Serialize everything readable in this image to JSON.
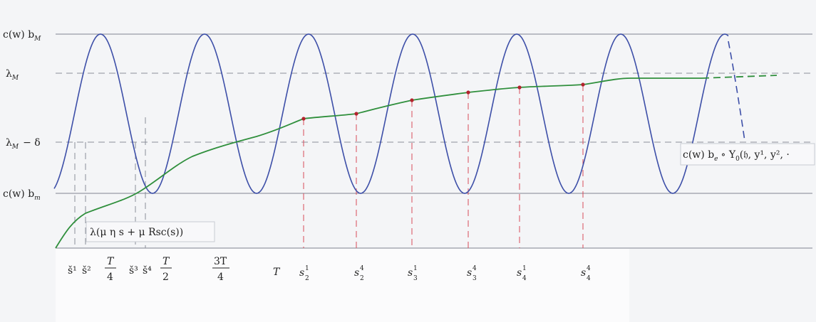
{
  "y_labels": {
    "cbM": "c(w) b",
    "cbM_sub": "M",
    "lambdaM": "λ",
    "lambdaM_sub": "M",
    "lambdaM_delta": "λ",
    "lambdaM_delta_sub": "M",
    "lambdaM_delta_tail": "− δ",
    "cbm": "c(w) b",
    "cbm_sub": "m"
  },
  "annotations": {
    "green_curve": "λ(μ η s + μ Rsc(s))",
    "blue_tail": "c(w) b",
    "blue_tail_sub": "e",
    "blue_tail_rest": "∘ Y",
    "blue_tail_sub2": "0",
    "blue_tail_end": "(𝔥, y¹, y², ·"
  },
  "x_labels": {
    "s1t": "š¹",
    "s2t": "š²",
    "T4_num": "T",
    "T4_den": "4",
    "s3t": "š³",
    "s4t": "š⁴",
    "T2_num": "T",
    "T2_den": "2",
    "T34_num": "3T",
    "T34_den": "4",
    "T": "T",
    "s2_1": "s",
    "s2_1_sup": "1",
    "s2_1_sub": "2",
    "s2_4": "s",
    "s2_4_sup": "4",
    "s2_4_sub": "2",
    "s3_1": "s",
    "s3_1_sup": "1",
    "s3_1_sub": "3",
    "s3_4": "s",
    "s3_4_sup": "4",
    "s3_4_sub": "3",
    "s4_1": "s",
    "s4_1_sup": "1",
    "s4_1_sub": "4",
    "s4_4": "s",
    "s4_4_sup": "4",
    "s4_4_sub": "4"
  },
  "colors": {
    "blue_curve": "#3d4fa8",
    "green_curve": "#2f8f3c",
    "red_markers": "#d84a5a"
  }
}
